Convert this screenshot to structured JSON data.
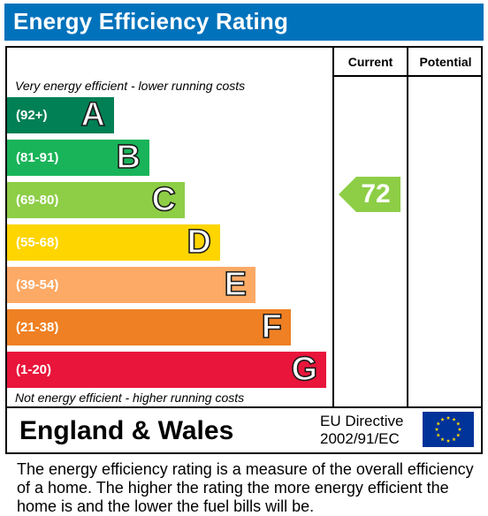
{
  "header": {
    "title": "Energy Efficiency Rating"
  },
  "columns": {
    "current": "Current",
    "potential": "Potential"
  },
  "notes": {
    "top": "Very energy efficient - lower running costs",
    "bottom": "Not energy efficient - higher running costs"
  },
  "chart_data": {
    "type": "bar",
    "categories": [
      "A",
      "B",
      "C",
      "D",
      "E",
      "F",
      "G"
    ],
    "ranges": [
      "(92+)",
      "(81-91)",
      "(69-80)",
      "(55-68)",
      "(39-54)",
      "(21-38)",
      "(1-20)"
    ],
    "colors": [
      "#008054",
      "#19b459",
      "#8dce46",
      "#ffd500",
      "#fcaa65",
      "#ef8023",
      "#e9153b"
    ],
    "current": {
      "value": 72,
      "band": "C",
      "color": "#8dce46"
    },
    "potential": null
  },
  "footer": {
    "region": "England & Wales",
    "directive_line1": "EU Directive",
    "directive_line2": "2002/91/EC",
    "flag_icon": "eu-flag-icon"
  },
  "description": "The energy efficiency rating is a measure of the overall efficiency of a home.  The higher the rating the more energy efficient the home is and the lower the fuel bills will be."
}
